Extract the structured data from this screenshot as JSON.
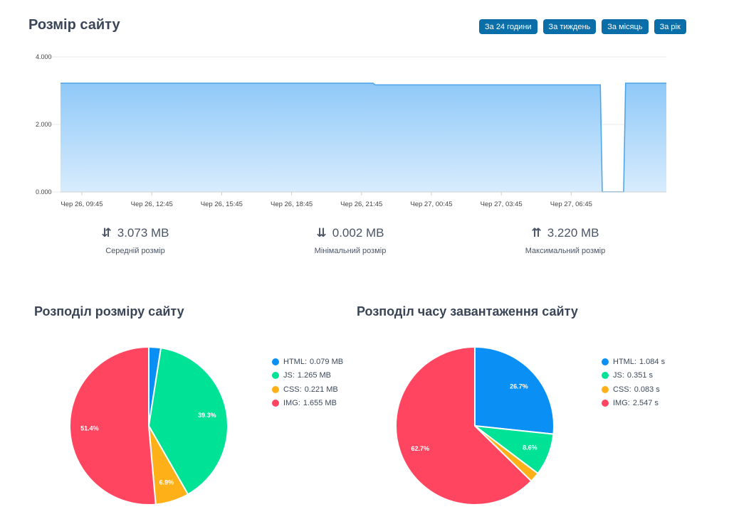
{
  "header": {
    "title": "Розмір сайту",
    "range_buttons": [
      "За 24 години",
      "За тиждень",
      "За місяць",
      "За рік"
    ]
  },
  "stats": [
    {
      "icon": "average-arrows-icon",
      "glyph": "⇵",
      "value": "3.073 MB",
      "label": "Середній розмір"
    },
    {
      "icon": "min-arrows-icon",
      "glyph": "⇊",
      "value": "0.002 MB",
      "label": "Мінімальний розмір"
    },
    {
      "icon": "max-arrows-icon",
      "glyph": "⇈",
      "value": "3.220 MB",
      "label": "Максимальний розмір"
    }
  ],
  "colors": {
    "html": "#0a8ff5",
    "js": "#00e396",
    "css": "#feb019",
    "img": "#ff4560",
    "area_line": "#4aa3e8",
    "button": "#0a6ea8"
  },
  "chart_data": [
    {
      "type": "area",
      "ylim": [
        0,
        4
      ],
      "y_ticks": [
        "0.000",
        "2.000",
        "4.000"
      ],
      "x_tick_labels": [
        "Чер 26, 09:45",
        "Чер 26, 12:45",
        "Чер 26, 15:45",
        "Чер 26, 18:45",
        "Чер 26, 21:45",
        "Чер 27, 00:45",
        "Чер 27, 03:45",
        "Чер 27, 06:45"
      ],
      "x": [
        "2024-06-26 08:50",
        "2024-06-26 22:15",
        "2024-06-26 22:20",
        "2024-06-27 08:00",
        "2024-06-27 08:05",
        "2024-06-27 09:00",
        "2024-06-27 09:05",
        "2024-06-27 10:50"
      ],
      "values": [
        3.22,
        3.22,
        3.17,
        3.17,
        0.002,
        0.002,
        3.22,
        3.22
      ],
      "grid": true
    },
    {
      "type": "pie",
      "title": "Розподіл розміру сайту",
      "categories": [
        "HTML",
        "JS",
        "CSS",
        "IMG"
      ],
      "values": [
        0.079,
        1.265,
        0.221,
        1.655
      ],
      "unit": "MB",
      "labels": [
        "0.079",
        "1.265",
        "0.221",
        "1.655"
      ],
      "slice_labels": [
        "",
        "39.3%",
        "6.9%",
        "51.4%"
      ],
      "legend_position": "right"
    },
    {
      "type": "pie",
      "title": "Розподіл часу завантаження сайту",
      "categories": [
        "HTML",
        "JS",
        "CSS",
        "IMG"
      ],
      "values": [
        1.084,
        0.351,
        0.083,
        2.547
      ],
      "unit": "s",
      "labels": [
        "1.084",
        "0.351",
        "0.083",
        "2.547"
      ],
      "slice_labels": [
        "26.7%",
        "8.6%",
        "",
        "62.7%"
      ],
      "legend_position": "right"
    }
  ]
}
